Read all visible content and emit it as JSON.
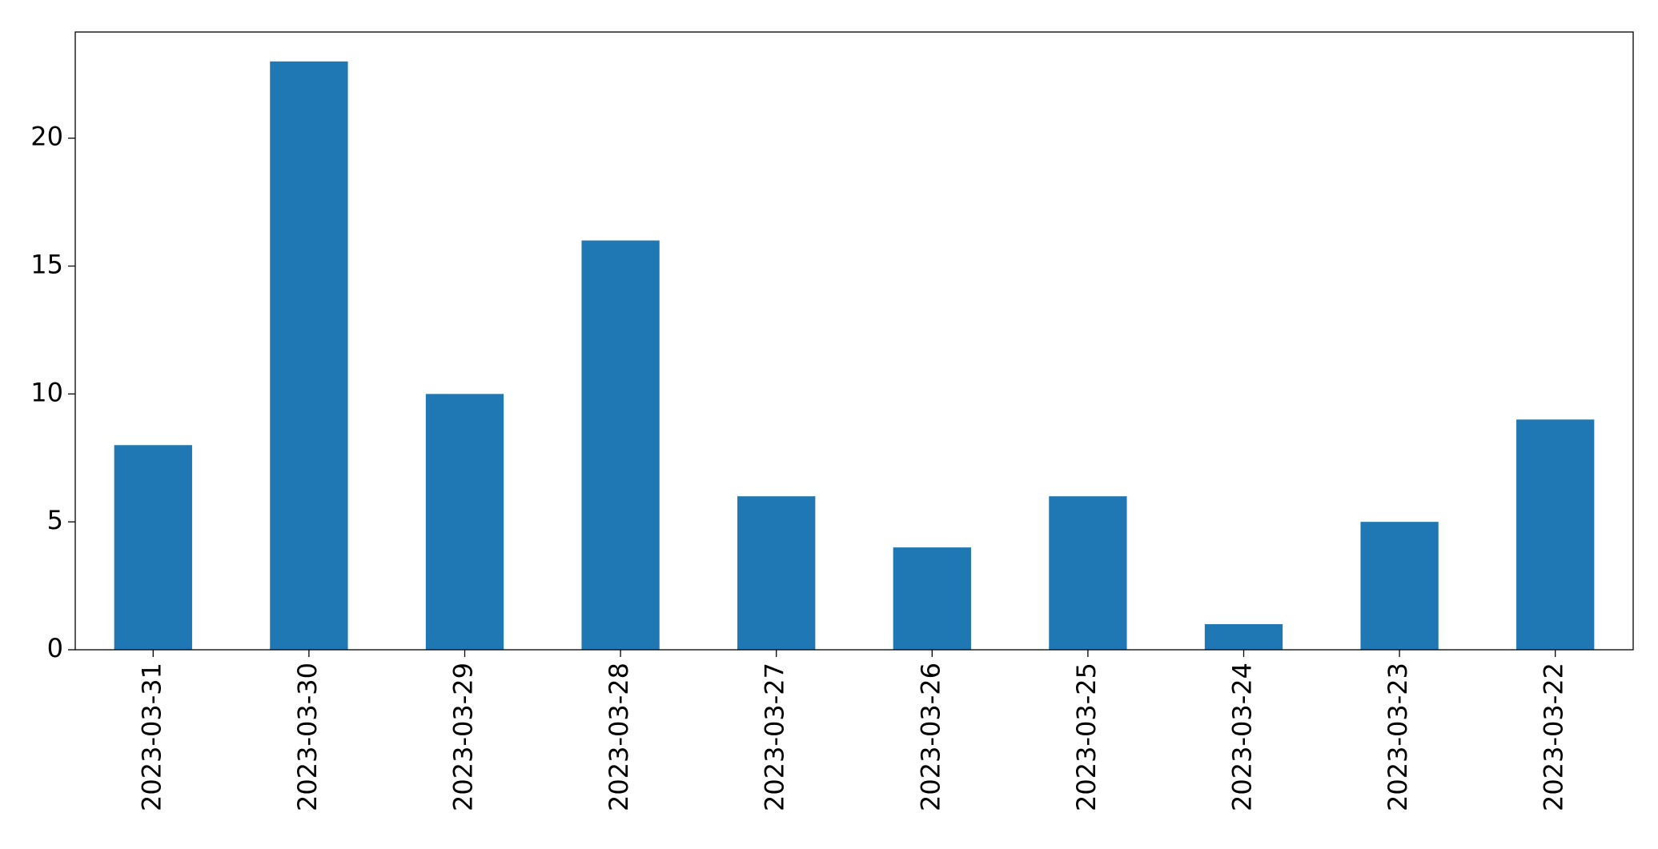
{
  "chart_data": {
    "type": "bar",
    "categories": [
      "2023-03-31",
      "2023-03-30",
      "2023-03-29",
      "2023-03-28",
      "2023-03-27",
      "2023-03-26",
      "2023-03-25",
      "2023-03-24",
      "2023-03-23",
      "2023-03-22"
    ],
    "values": [
      8,
      23,
      10,
      16,
      6,
      4,
      6,
      1,
      5,
      9
    ],
    "color": "#1f77b4",
    "ylim": [
      0,
      24.15
    ],
    "yticks": [
      0,
      5,
      10,
      15,
      20
    ],
    "grid": false
  }
}
